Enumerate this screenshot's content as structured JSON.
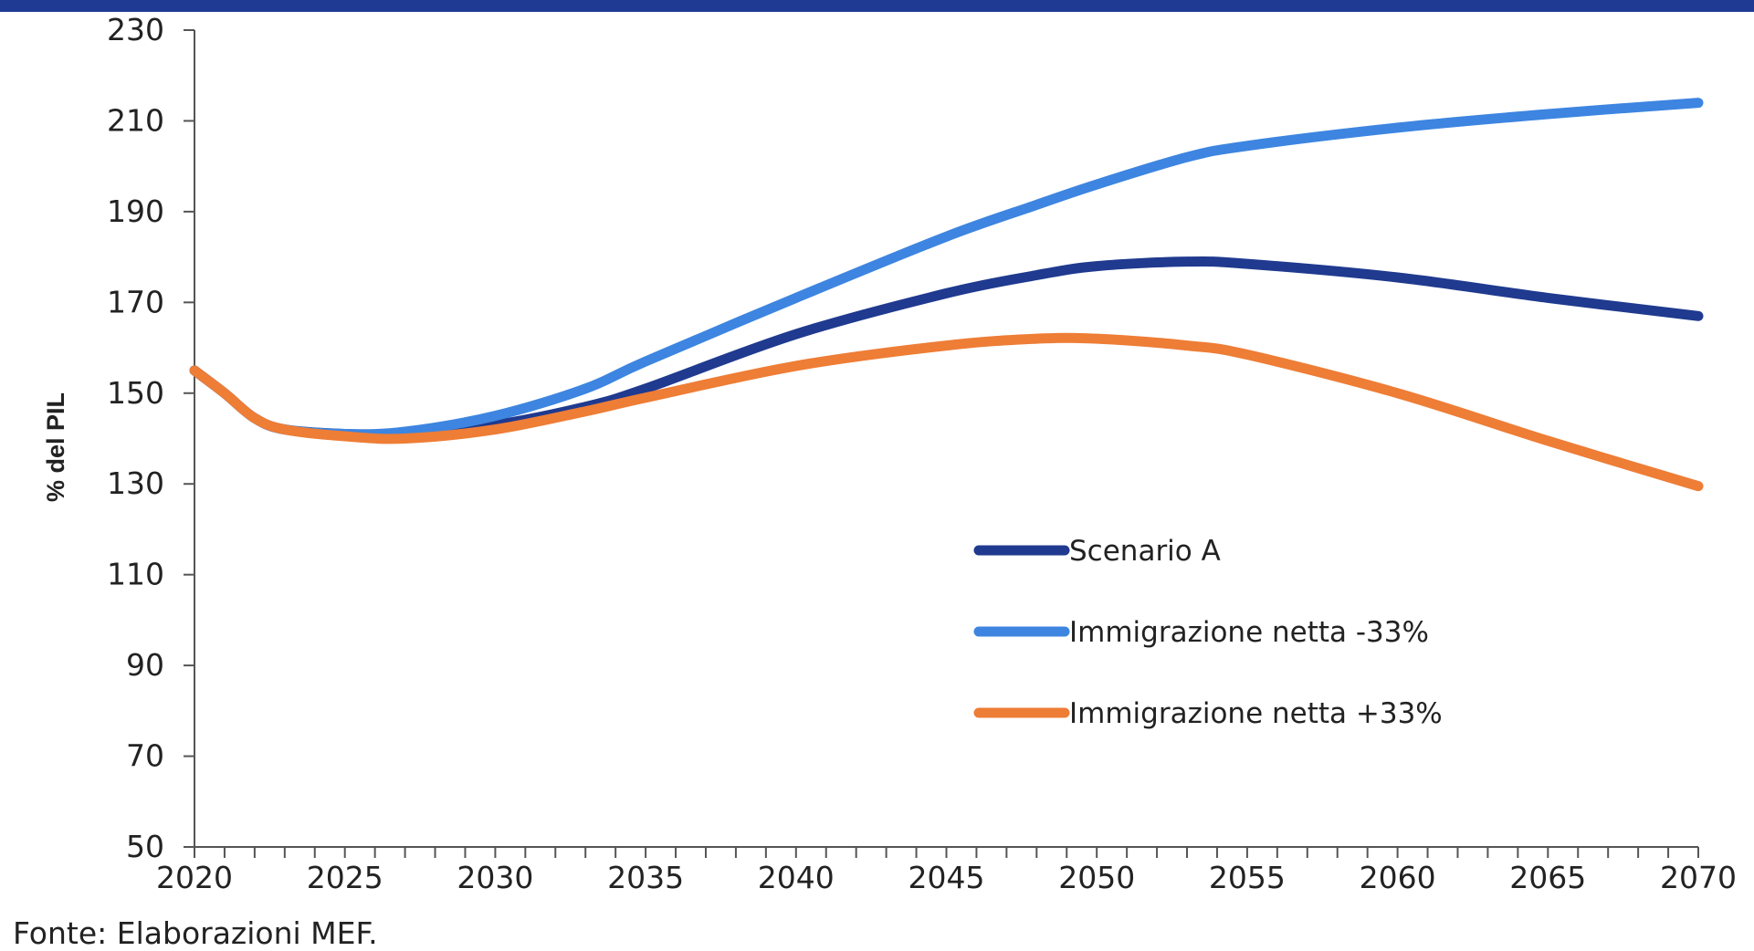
{
  "colors": {
    "top_bar": "#1f3a93",
    "axis": "#555555",
    "text": "#222222"
  },
  "chart_data": {
    "type": "line",
    "title": "",
    "xlabel": "",
    "ylabel": "% del PIL",
    "xlim": [
      2020,
      2070
    ],
    "ylim": [
      50,
      230
    ],
    "y_ticks": [
      230,
      210,
      190,
      170,
      150,
      130,
      110,
      90,
      70,
      50
    ],
    "x_ticks": [
      2020,
      2025,
      2030,
      2035,
      2040,
      2045,
      2050,
      2055,
      2060,
      2065,
      2070
    ],
    "x_minor_step": 1,
    "grid": false,
    "legend_position": "center-right",
    "x": [
      2020,
      2021,
      2022,
      2023,
      2025,
      2027,
      2030,
      2033,
      2035,
      2040,
      2045,
      2048,
      2050,
      2053,
      2055,
      2060,
      2065,
      2070
    ],
    "series": [
      {
        "name": "Scenario A",
        "color": "#1f3a8f",
        "values": [
          155,
          150,
          144.5,
          142,
          141,
          141,
          143,
          147,
          151,
          163,
          172,
          176,
          178,
          179,
          178.5,
          175.5,
          171,
          167
        ]
      },
      {
        "name": "Immigrazione netta -33%",
        "color": "#3d85e0",
        "values": [
          155,
          150,
          144.5,
          142,
          141,
          141.5,
          145,
          151,
          157,
          171,
          184.5,
          191.5,
          196,
          202,
          204.5,
          208.5,
          211.5,
          214
        ]
      },
      {
        "name": "Immigrazione netta +33%",
        "color": "#ee7d36",
        "values": [
          155,
          150,
          144.5,
          142,
          140.5,
          140,
          142,
          146,
          149,
          156,
          160.5,
          162,
          162,
          160.5,
          158.5,
          150,
          139.5,
          129.5
        ]
      }
    ]
  },
  "source_note": "Fonte: Elaborazioni MEF."
}
